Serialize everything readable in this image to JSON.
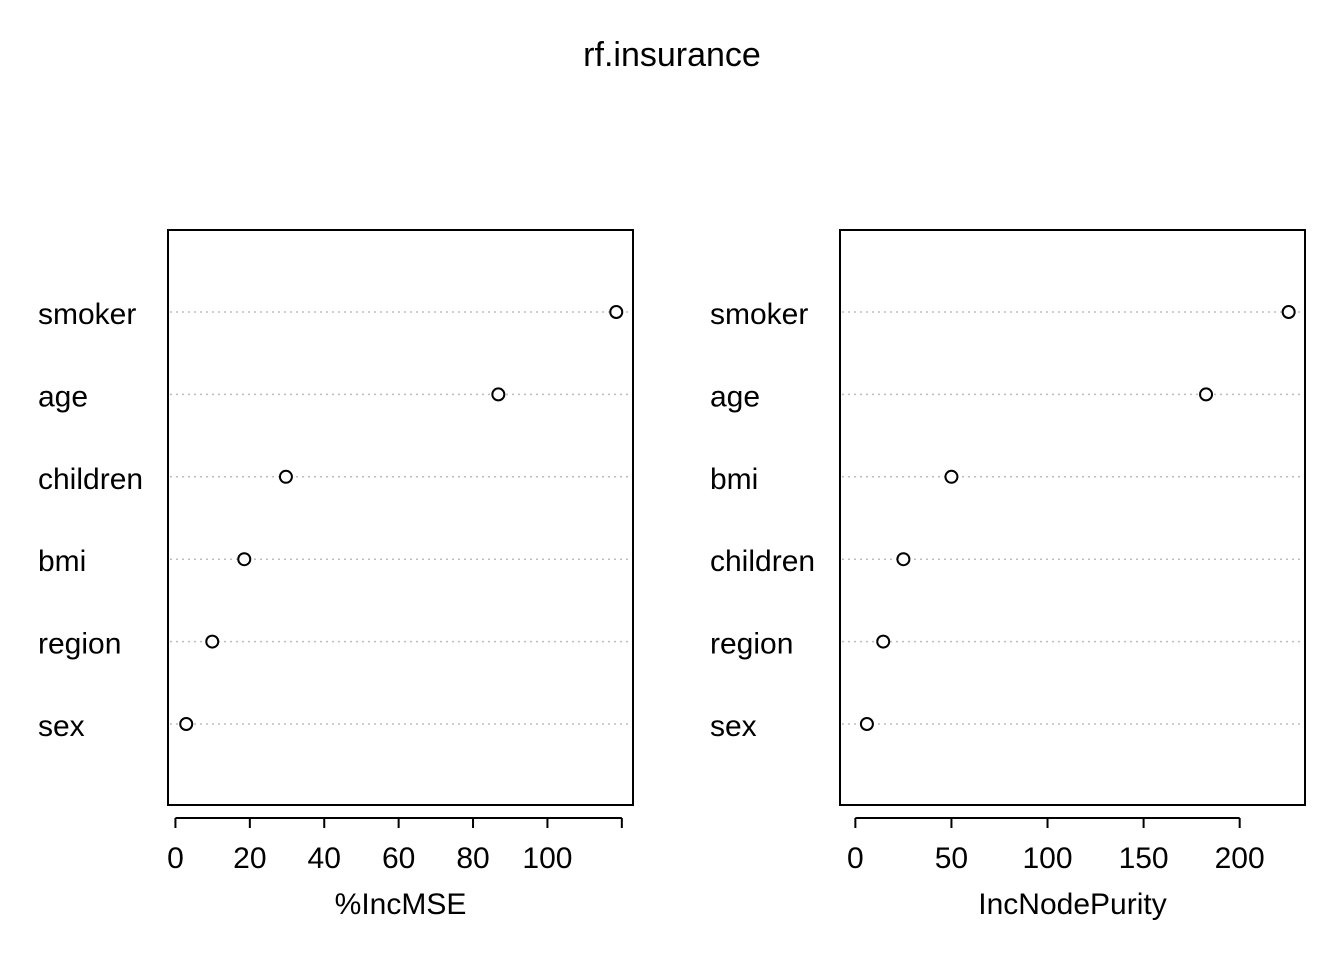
{
  "title": "rf.insurance",
  "chart_data": [
    {
      "type": "scatter",
      "style": "dotchart",
      "xlabel": "%IncMSE",
      "xlim": [
        -2,
        123
      ],
      "xticks": [
        0,
        20,
        40,
        60,
        80,
        100
      ],
      "tick_marks_extra": [
        120
      ],
      "categories": [
        "smoker",
        "age",
        "children",
        "bmi",
        "region",
        "sex"
      ],
      "values": [
        118.5,
        86.8,
        29.7,
        18.5,
        9.9,
        2.9
      ],
      "grid": "dotted-horizontal"
    },
    {
      "type": "scatter",
      "style": "dotchart",
      "xlabel": "IncNodePurity",
      "xlim": [
        -8,
        234
      ],
      "xticks": [
        0,
        50,
        100,
        150,
        200
      ],
      "tick_marks_extra": [],
      "categories": [
        "smoker",
        "age",
        "bmi",
        "children",
        "region",
        "sex"
      ],
      "values": [
        225.5,
        182.5,
        50.0,
        25.0,
        14.5,
        6.0
      ],
      "grid": "dotted-horizontal"
    }
  ]
}
